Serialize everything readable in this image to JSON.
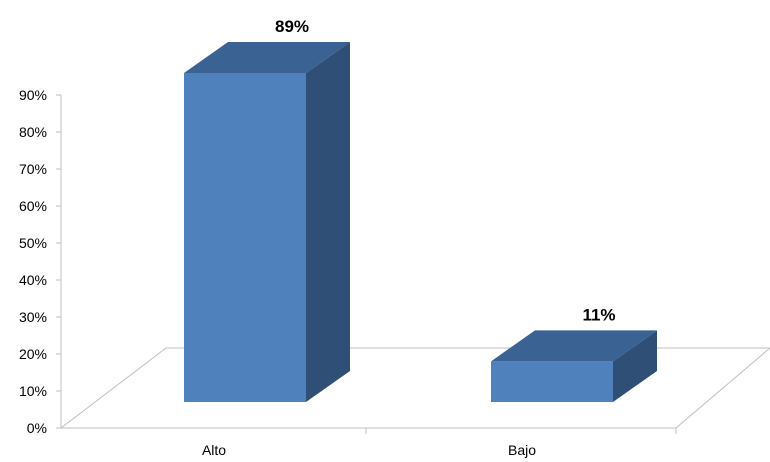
{
  "chart_data": {
    "type": "bar",
    "categories": [
      "Alto",
      "Bajo"
    ],
    "values": [
      89,
      11
    ],
    "data_labels": [
      "89%",
      "11%"
    ],
    "y_ticks": [
      "0%",
      "10%",
      "20%",
      "30%",
      "40%",
      "50%",
      "60%",
      "70%",
      "80%",
      "90%"
    ],
    "ylim": [
      0,
      90
    ],
    "grid": false,
    "legend": "none",
    "colors": {
      "bar_front": "#4f81bd",
      "bar_top": "#3a6293",
      "bar_side": "#2f4f77",
      "axis": "#bfbfbf"
    }
  }
}
